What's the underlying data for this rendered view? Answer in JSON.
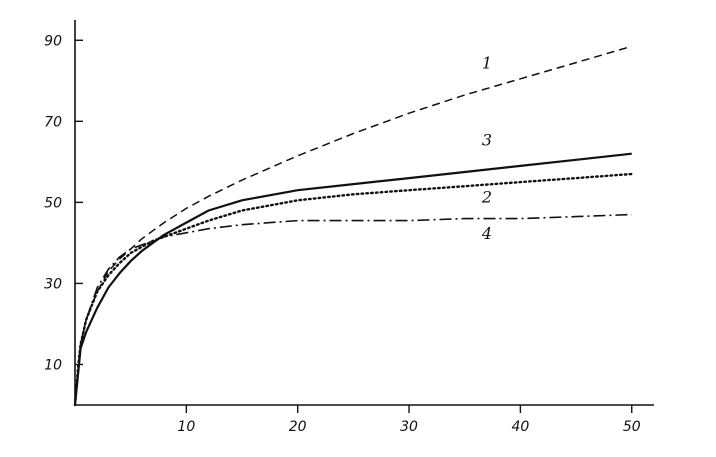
{
  "chart_data": {
    "type": "line",
    "title": "",
    "xlabel": "",
    "ylabel": "",
    "xlim": [
      0,
      52
    ],
    "ylim": [
      0,
      95
    ],
    "x_ticks": [
      10,
      20,
      30,
      40,
      50
    ],
    "x_tick_labels": [
      "10",
      "20",
      "30",
      "40",
      "50"
    ],
    "y_ticks": [
      10,
      30,
      50,
      70,
      90
    ],
    "y_tick_labels": [
      "10",
      "30",
      "50",
      "70",
      "90"
    ],
    "grid": false,
    "legend": "none",
    "series": [
      {
        "name": "1",
        "style": "dashed",
        "color": "#111111",
        "x": [
          0,
          0.5,
          1,
          2,
          3,
          4,
          5,
          6,
          7,
          8,
          10,
          12,
          15,
          20,
          25,
          30,
          35,
          40,
          45,
          50
        ],
        "y": [
          0,
          15,
          21,
          28,
          33,
          36,
          38.5,
          41,
          43,
          45,
          48.5,
          51.5,
          55.5,
          61.5,
          67,
          72,
          76.5,
          80.5,
          84.5,
          88.5
        ]
      },
      {
        "name": "2",
        "style": "dotted",
        "color": "#111111",
        "x": [
          0,
          0.3,
          0.5,
          1,
          2,
          3,
          4,
          5,
          6,
          7,
          8,
          10,
          12,
          15,
          20,
          25,
          30,
          35,
          40,
          45,
          50
        ],
        "y": [
          0,
          10,
          15,
          21,
          28,
          32,
          35,
          37.5,
          39,
          40.5,
          41.5,
          43.5,
          45.5,
          48,
          50.5,
          52,
          53,
          54,
          55,
          56,
          57
        ]
      },
      {
        "name": "3",
        "style": "solid",
        "color": "#111111",
        "x": [
          0,
          0.5,
          1,
          2,
          3,
          4,
          5,
          6,
          7,
          8,
          10,
          12,
          15,
          20,
          25,
          30,
          35,
          40,
          45,
          50
        ],
        "y": [
          0,
          14,
          18,
          24,
          29,
          32.5,
          35.5,
          38,
          40,
          42,
          45,
          48,
          50.5,
          53,
          54.5,
          56,
          57.5,
          59,
          60.5,
          62
        ]
      },
      {
        "name": "4",
        "style": "dash-dot",
        "color": "#111111",
        "x": [
          0,
          0.5,
          1,
          2,
          3,
          4,
          5,
          6,
          7,
          8,
          10,
          12,
          15,
          20,
          25,
          30,
          35,
          40,
          45,
          50
        ],
        "y": [
          0,
          15,
          21,
          29,
          33.5,
          36.5,
          38.5,
          39.5,
          40.5,
          41.5,
          42.5,
          43.5,
          44.5,
          45.5,
          45.5,
          45.5,
          46,
          46,
          46.5,
          47
        ]
      }
    ],
    "annotations": [
      {
        "text": "1",
        "x": 37,
        "y": 83
      },
      {
        "text": "3",
        "x": 37,
        "y": 64
      },
      {
        "text": "2",
        "x": 37,
        "y": 50
      },
      {
        "text": "4",
        "x": 37,
        "y": 41
      }
    ]
  }
}
